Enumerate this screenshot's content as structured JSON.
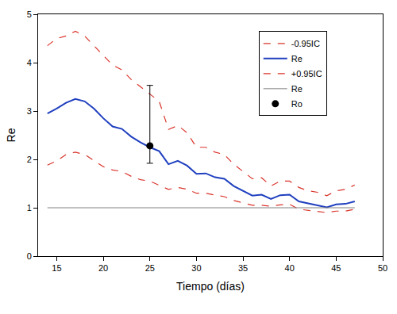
{
  "chart_data": {
    "type": "line",
    "x_label": "Tiempo (días)",
    "y_label": "Re",
    "x": [
      14,
      15,
      16,
      17,
      18,
      19,
      20,
      21,
      22,
      23,
      24,
      25,
      26,
      27,
      28,
      29,
      30,
      31,
      32,
      33,
      34,
      35,
      36,
      37,
      38,
      39,
      40,
      41,
      42,
      43,
      44,
      45,
      46,
      47
    ],
    "xlim": [
      13,
      50
    ],
    "xticks": [
      15,
      20,
      25,
      30,
      35,
      40,
      45,
      50
    ],
    "ylim": [
      0,
      5
    ],
    "yticks": [
      0,
      1,
      2,
      3,
      4,
      5
    ],
    "grid": false,
    "legend": "upper right",
    "series": [
      {
        "name": "-0.95IC",
        "color": "#d9342b",
        "line_style": "dashed",
        "values": [
          1.88,
          1.97,
          2.1,
          2.15,
          2.1,
          1.98,
          1.85,
          1.78,
          1.75,
          1.65,
          1.58,
          1.55,
          1.47,
          1.38,
          1.42,
          1.38,
          1.3,
          1.3,
          1.26,
          1.23,
          1.15,
          1.1,
          1.05,
          1.05,
          1.03,
          1.06,
          1.07,
          0.97,
          0.95,
          0.93,
          0.9,
          0.93,
          0.93,
          0.97
        ]
      },
      {
        "name": "Re",
        "color": "#1f3fbf",
        "line_style": "solid",
        "values": [
          2.95,
          3.05,
          3.17,
          3.25,
          3.2,
          3.05,
          2.85,
          2.68,
          2.63,
          2.47,
          2.35,
          2.25,
          2.17,
          1.9,
          1.97,
          1.87,
          1.7,
          1.71,
          1.63,
          1.6,
          1.45,
          1.35,
          1.25,
          1.27,
          1.18,
          1.26,
          1.27,
          1.13,
          1.09,
          1.06,
          1.01,
          1.07,
          1.08,
          1.13
        ]
      },
      {
        "name": "+0.95IC",
        "color": "#d9342b",
        "line_style": "dashed",
        "values": [
          4.35,
          4.5,
          4.55,
          4.65,
          4.55,
          4.35,
          4.15,
          3.95,
          3.85,
          3.65,
          3.5,
          3.35,
          3.2,
          2.62,
          2.7,
          2.55,
          2.25,
          2.25,
          2.15,
          2.1,
          1.9,
          1.75,
          1.6,
          1.62,
          1.45,
          1.55,
          1.55,
          1.42,
          1.35,
          1.32,
          1.25,
          1.35,
          1.38,
          1.47
        ]
      },
      {
        "name": "Re",
        "color": "#808080",
        "line_style": "solid",
        "values": [
          1,
          1,
          1,
          1,
          1,
          1,
          1,
          1,
          1,
          1,
          1,
          1,
          1,
          1,
          1,
          1,
          1,
          1,
          1,
          1,
          1,
          1,
          1,
          1,
          1,
          1,
          1,
          1,
          1,
          1,
          1,
          1,
          1,
          1
        ]
      },
      {
        "name": "Ro",
        "type": "scatter",
        "marker": "circle",
        "color": "#000000",
        "x": [
          25
        ],
        "values": [
          2.28
        ],
        "error": {
          "upper": [
            3.53
          ],
          "lower": [
            1.92
          ]
        }
      }
    ]
  }
}
